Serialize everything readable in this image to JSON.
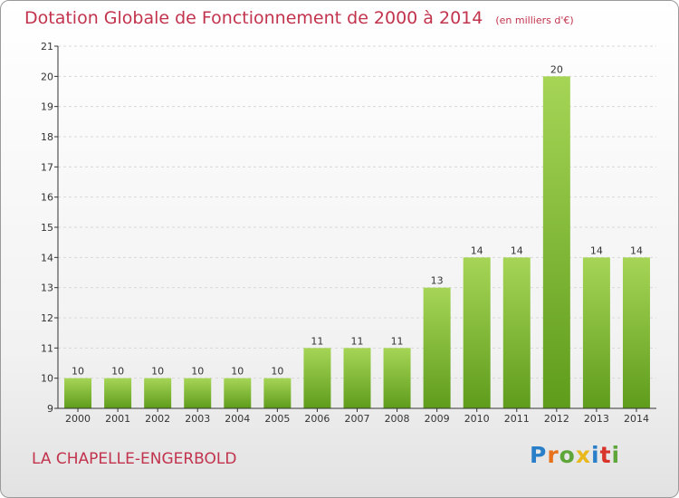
{
  "title": "Dotation Globale de Fonctionnement de 2000 à 2014",
  "unit_label": "(en milliers d'€)",
  "commune": "LA CHAPELLE-ENGERBOLD",
  "logo": {
    "text": "Proxiti",
    "letter_colors": [
      "#2a7fc9",
      "#e8721c",
      "#5fa63a",
      "#e8b81c",
      "#2a7fc9",
      "#d9342b",
      "#5fa63a"
    ]
  },
  "colors": {
    "bar_light": "#a6d556",
    "bar_dark": "#5f9c1c",
    "grid": "#d8d8d8",
    "axis": "#333333",
    "accent": "#c2334d"
  },
  "chart_data": {
    "type": "bar",
    "title": "Dotation Globale de Fonctionnement de 2000 à 2014",
    "subtitle": "(en milliers d'€)",
    "xlabel": "",
    "ylabel": "",
    "categories": [
      "2000",
      "2001",
      "2002",
      "2003",
      "2004",
      "2005",
      "2006",
      "2007",
      "2008",
      "2009",
      "2010",
      "2011",
      "2012",
      "2013",
      "2014"
    ],
    "values": [
      10,
      10,
      10,
      10,
      10,
      10,
      11,
      11,
      11,
      13,
      14,
      14,
      20,
      14,
      14
    ],
    "ylim": [
      9,
      21
    ],
    "yticks": [
      9,
      10,
      11,
      12,
      13,
      14,
      15,
      16,
      17,
      18,
      19,
      20,
      21
    ],
    "grid": true,
    "data_labels": true
  }
}
